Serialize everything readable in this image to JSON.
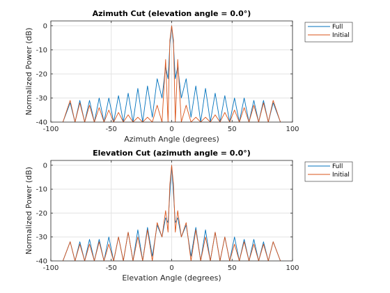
{
  "chart_data": [
    {
      "type": "line",
      "title": "Azimuth Cut (elevation angle = 0.0°)",
      "xlabel": "Azimuth Angle (degrees)",
      "ylabel": "Normalized Power (dB)",
      "xlim": [
        -100,
        100
      ],
      "ylim": [
        -40,
        2
      ],
      "xticks": [
        "-100",
        "-50",
        "0",
        "50",
        "100"
      ],
      "yticks": [
        "0",
        "-10",
        "-20",
        "-30",
        "-40"
      ],
      "grid": true,
      "legend_position": "outside-top-right",
      "series": [
        {
          "name": "Full",
          "color": "#0072BD",
          "x": [
            -90,
            -84,
            -80,
            -76,
            -72,
            -68,
            -64,
            -60,
            -56,
            -52,
            -48,
            -44,
            -40,
            -36,
            -32,
            -28,
            -24,
            -20,
            -16,
            -12,
            -8,
            -5,
            -3,
            -1.5,
            0,
            1.5,
            3,
            5,
            8,
            12,
            16,
            20,
            24,
            28,
            32,
            36,
            40,
            44,
            48,
            52,
            56,
            60,
            64,
            68,
            72,
            76,
            80,
            84,
            90
          ],
          "y": [
            -40,
            -32,
            -40,
            -31,
            -40,
            -31,
            -40,
            -30,
            -40,
            -30,
            -40,
            -29,
            -40,
            -28,
            -40,
            -26,
            -40,
            -25,
            -38,
            -22,
            -30,
            -17,
            -22,
            -8,
            0,
            -8,
            -22,
            -17,
            -30,
            -22,
            -38,
            -25,
            -40,
            -26,
            -40,
            -28,
            -40,
            -29,
            -40,
            -30,
            -40,
            -30,
            -40,
            -31,
            -40,
            -31,
            -40,
            -32,
            -40
          ]
        },
        {
          "name": "Initial",
          "color": "#D95319",
          "x": [
            -90,
            -84,
            -80,
            -76,
            -72,
            -68,
            -64,
            -60,
            -56,
            -52,
            -48,
            -44,
            -40,
            -36,
            -32,
            -28,
            -24,
            -20,
            -16,
            -12,
            -8,
            -5,
            -3,
            -1.5,
            0,
            1.5,
            3,
            5,
            8,
            12,
            16,
            20,
            24,
            28,
            32,
            36,
            40,
            44,
            48,
            52,
            56,
            60,
            64,
            68,
            72,
            76,
            80,
            84,
            90
          ],
          "y": [
            -40,
            -31,
            -40,
            -32,
            -40,
            -33,
            -40,
            -34,
            -40,
            -35,
            -40,
            -36,
            -40,
            -37,
            -40,
            -38,
            -40,
            -38,
            -40,
            -33,
            -40,
            -14,
            -40,
            -6,
            0,
            -6,
            -40,
            -14,
            -40,
            -33,
            -40,
            -38,
            -40,
            -38,
            -40,
            -37,
            -40,
            -36,
            -40,
            -35,
            -40,
            -34,
            -40,
            -33,
            -40,
            -32,
            -40,
            -31,
            -40
          ]
        }
      ]
    },
    {
      "type": "line",
      "title": "Elevation Cut (azimuth angle = 0.0°)",
      "xlabel": "Elevation Angle (degrees)",
      "ylabel": "Normalized Power (dB)",
      "xlim": [
        -100,
        100
      ],
      "ylim": [
        -40,
        2
      ],
      "xticks": [
        "-100",
        "-50",
        "0",
        "50",
        "100"
      ],
      "yticks": [
        "0",
        "-10",
        "-20",
        "-30",
        "-40"
      ],
      "grid": true,
      "legend_position": "outside-top-right",
      "series": [
        {
          "name": "Full",
          "color": "#0072BD",
          "x": [
            -90,
            -84,
            -80,
            -76,
            -72,
            -68,
            -64,
            -60,
            -56,
            -52,
            -48,
            -44,
            -40,
            -36,
            -32,
            -28,
            -24,
            -20,
            -16,
            -12,
            -8,
            -5,
            -3,
            -1.5,
            0,
            1.5,
            3,
            5,
            8,
            12,
            16,
            20,
            24,
            28,
            32,
            36,
            40,
            44,
            48,
            52,
            56,
            60,
            64,
            68,
            72,
            76,
            80,
            84,
            90
          ],
          "y": [
            -40,
            -32,
            -40,
            -32,
            -40,
            -31,
            -40,
            -31,
            -40,
            -30,
            -40,
            -30,
            -40,
            -28,
            -40,
            -27,
            -40,
            -26,
            -38,
            -25,
            -30,
            -22,
            -24,
            -12,
            0,
            -12,
            -24,
            -22,
            -30,
            -25,
            -38,
            -26,
            -40,
            -27,
            -40,
            -28,
            -40,
            -30,
            -40,
            -30,
            -40,
            -31,
            -40,
            -31,
            -40,
            -32,
            -40,
            -32,
            -40
          ]
        },
        {
          "name": "Initial",
          "color": "#D95319",
          "x": [
            -90,
            -84,
            -80,
            -76,
            -72,
            -68,
            -64,
            -60,
            -56,
            -52,
            -48,
            -44,
            -40,
            -36,
            -32,
            -28,
            -24,
            -20,
            -16,
            -12,
            -8,
            -5,
            -3,
            -1.5,
            0,
            1.5,
            3,
            5,
            8,
            12,
            16,
            20,
            24,
            28,
            32,
            36,
            40,
            44,
            48,
            52,
            56,
            60,
            64,
            68,
            72,
            76,
            80,
            84,
            90
          ],
          "y": [
            -40,
            -32,
            -40,
            -33,
            -40,
            -33,
            -40,
            -32,
            -40,
            -33,
            -40,
            -30,
            -40,
            -28,
            -40,
            -30,
            -40,
            -27,
            -40,
            -24,
            -30,
            -19,
            -28,
            -8,
            0,
            -8,
            -28,
            -19,
            -30,
            -24,
            -40,
            -27,
            -40,
            -30,
            -40,
            -28,
            -40,
            -30,
            -40,
            -33,
            -40,
            -32,
            -40,
            -33,
            -40,
            -33,
            -40,
            -32,
            -40
          ]
        }
      ]
    }
  ]
}
